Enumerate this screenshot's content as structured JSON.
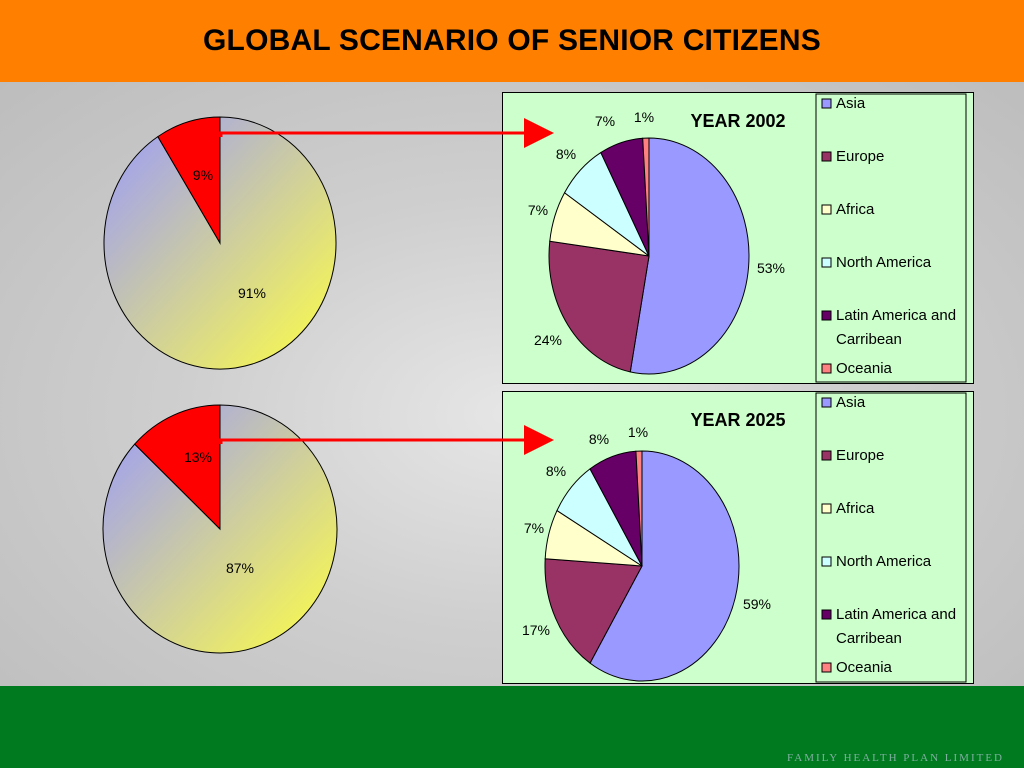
{
  "header": {
    "title": "GLOBAL SCENARIO OF SENIOR CITIZENS"
  },
  "footer": {
    "brand": "FAMILY HEALTH PLAN LIMITED"
  },
  "colors": {
    "header_bg": "#ff7f00",
    "footer_bg": "#007a1f",
    "panel_bg": "#ccffcc",
    "pie_red": "#ff0000",
    "pie_blue": "#9999ff",
    "pie_yellow": "#ffff44",
    "arrow": "#ff0000"
  },
  "chart_data": [
    {
      "type": "pie",
      "title": "",
      "categories": [
        "",
        ""
      ],
      "values": [
        9,
        91
      ],
      "data_labels": [
        "9%",
        "91%"
      ]
    },
    {
      "type": "pie",
      "title": "YEAR 2002",
      "categories": [
        "Asia",
        "Europe",
        "Africa",
        "North America",
        "Latin America and Carribean",
        "Oceania"
      ],
      "values": [
        53,
        24,
        7,
        8,
        7,
        1
      ],
      "data_labels": [
        "53%",
        "24%",
        "7%",
        "8%",
        "7%",
        "1%"
      ],
      "colors": [
        "#9999ff",
        "#993366",
        "#ffffcc",
        "#ccffff",
        "#660066",
        "#ff8080"
      ],
      "legend_placement": "right"
    },
    {
      "type": "pie",
      "title": "",
      "categories": [
        "",
        ""
      ],
      "values": [
        13,
        87
      ],
      "data_labels": [
        "13%",
        "87%"
      ]
    },
    {
      "type": "pie",
      "title": "YEAR 2025",
      "categories": [
        "Asia",
        "Europe",
        "Africa",
        "North America",
        "Latin America and Carribean",
        "Oceania"
      ],
      "values": [
        59,
        17,
        7,
        8,
        8,
        1
      ],
      "data_labels": [
        "59%",
        "17%",
        "7%",
        "8%",
        "8%",
        "1%"
      ],
      "colors": [
        "#9999ff",
        "#993366",
        "#ffffcc",
        "#ccffff",
        "#660066",
        "#ff8080"
      ],
      "legend_placement": "right"
    }
  ]
}
